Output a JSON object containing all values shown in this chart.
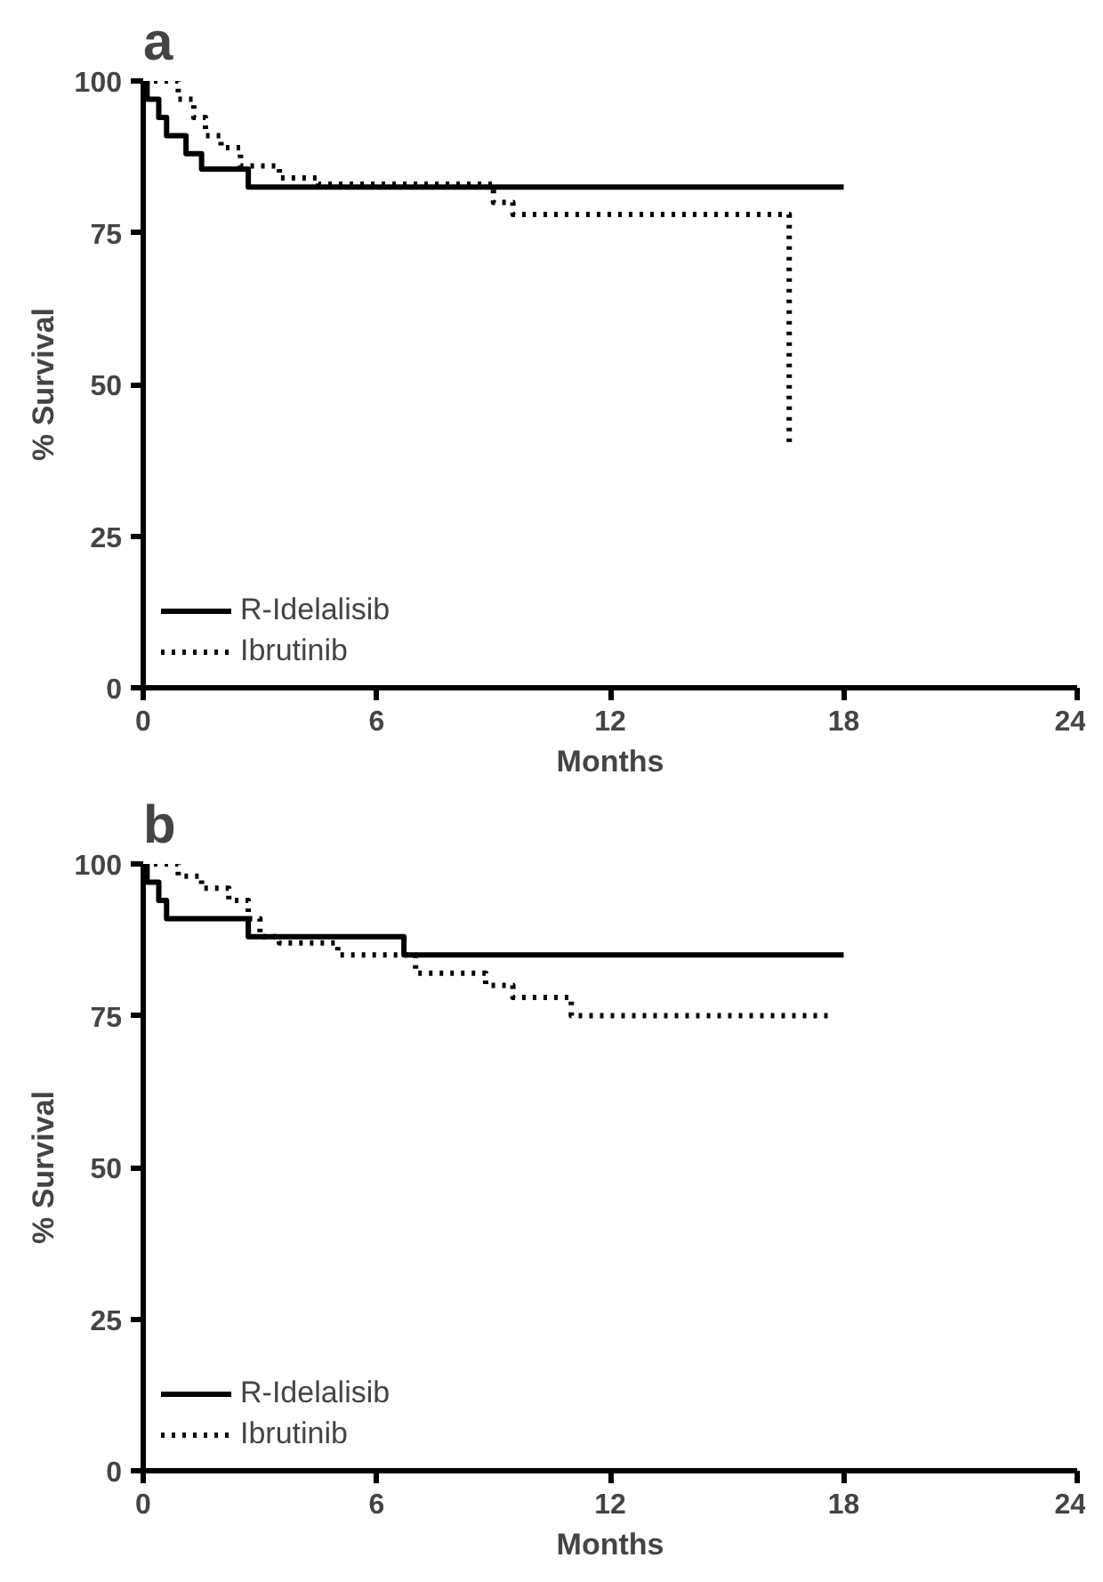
{
  "chart_data": [
    {
      "type": "step",
      "title": "a",
      "xlabel": "Months",
      "ylabel": "% Survival",
      "xlim": [
        0,
        24
      ],
      "xticks": [
        0,
        6,
        12,
        18,
        24
      ],
      "ylim": [
        0,
        100
      ],
      "yticks": [
        0,
        25,
        50,
        75,
        100
      ],
      "grid": false,
      "legend": "bottom left",
      "series": [
        {
          "name": "R-Idelalisib",
          "color": "#000000",
          "line_style": "solid",
          "x": [
            0,
            0.1,
            0.4,
            0.6,
            1.1,
            1.5,
            2.7,
            18
          ],
          "values": [
            100,
            97,
            94,
            91,
            88,
            85.5,
            82.5,
            82.5
          ]
        },
        {
          "name": "Ibrutinib",
          "color": "#000000",
          "line_style": "dotted",
          "x": [
            0,
            0.9,
            1.3,
            1.6,
            2.0,
            2.5,
            3.5,
            4.5,
            6,
            8.5,
            9.0,
            9.5,
            16.6,
            16.7
          ],
          "values": [
            100,
            97,
            94,
            91,
            89,
            86,
            84,
            83,
            83,
            83,
            80,
            78,
            40,
            40
          ]
        }
      ]
    },
    {
      "type": "step",
      "title": "b",
      "xlabel": "Months",
      "ylabel": "% Survival",
      "xlim": [
        0,
        24
      ],
      "xticks": [
        0,
        6,
        12,
        18,
        24
      ],
      "ylim": [
        0,
        100
      ],
      "yticks": [
        0,
        25,
        50,
        75,
        100
      ],
      "grid": false,
      "legend": "bottom left",
      "series": [
        {
          "name": "R-Idelalisib",
          "color": "#000000",
          "line_style": "solid",
          "x": [
            0,
            0.1,
            0.4,
            0.6,
            2.7,
            6.7,
            18
          ],
          "values": [
            100,
            97,
            94,
            91,
            88,
            85,
            85
          ]
        },
        {
          "name": "Ibrutinib",
          "color": "#000000",
          "line_style": "dotted",
          "x": [
            0,
            0.9,
            1.5,
            2.2,
            2.7,
            3.0,
            3.5,
            5,
            7,
            8.5,
            8.8,
            9.5,
            11,
            17.6
          ],
          "values": [
            100,
            98,
            96,
            94,
            91,
            88,
            87,
            85,
            82,
            82,
            80,
            78,
            75,
            75
          ]
        }
      ]
    }
  ]
}
